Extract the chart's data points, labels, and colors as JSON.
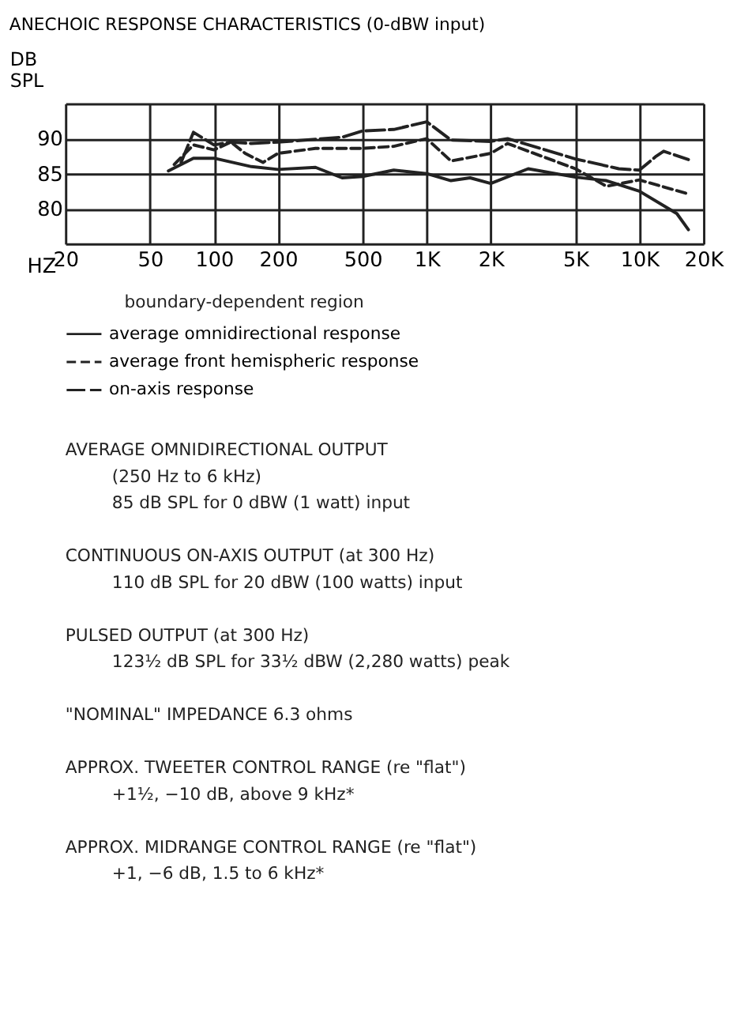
{
  "chart_data": {
    "type": "line",
    "title": "ANECHOIC RESPONSE CHARACTERISTICS (0-dBW input)",
    "xlabel": "HZ",
    "ylabel": "DB SPL",
    "log": "x",
    "grid": true,
    "legend": "bottom",
    "marker": "none",
    "xlim": [
      20,
      20000
    ],
    "xticks": [
      20,
      50,
      100,
      200,
      500,
      {
        "value": 1000,
        "label": "1K"
      },
      {
        "value": 2000,
        "label": "2K"
      },
      {
        "value": 5000,
        "label": "5K"
      },
      {
        "value": 10000,
        "label": "10K"
      },
      {
        "value": 20000,
        "label": "20K"
      }
    ],
    "ylim": [
      75,
      95
    ],
    "yticks": [
      {
        "value": 75,
        "label": null
      },
      80,
      85,
      90,
      {
        "value": 95,
        "label": null
      }
    ],
    "series": [
      {
        "name": "average omnidirectional response",
        "color": "#222222",
        "line_style": "solid",
        "x": [
          61,
          80,
          100,
          150,
          200,
          300,
          400,
          500,
          700,
          1000,
          1300,
          1600,
          2000,
          3000,
          5000,
          7000,
          10000,
          15000,
          17000
        ],
        "values": [
          85.4,
          87.2,
          87.2,
          86,
          85.6,
          85.9,
          84.4,
          84.6,
          85.5,
          85,
          84,
          84.4,
          83.6,
          85.7,
          84.5,
          84,
          82.5,
          79.3,
          77
        ]
      },
      {
        "name": "average front hemispheric response",
        "color": "#222222",
        "line_style": "dashed",
        "x": [
          65,
          80,
          100,
          120,
          140,
          170,
          200,
          300,
          500,
          700,
          1000,
          1300,
          2000,
          2400,
          5000,
          7000,
          10000,
          17000
        ],
        "values": [
          86.3,
          89.1,
          88.4,
          89.5,
          87.9,
          86.6,
          87.9,
          88.6,
          88.6,
          88.9,
          90,
          86.8,
          87.9,
          89.3,
          85.7,
          83.2,
          84.1,
          82.1
        ]
      },
      {
        "name": "on-axis response",
        "color": "#222222",
        "line_style": "dashed",
        "x": [
          70,
          80,
          100,
          120,
          150,
          200,
          300,
          400,
          500,
          700,
          1000,
          1300,
          2000,
          2400,
          5000,
          8000,
          10000,
          12000,
          13000,
          17000
        ],
        "values": [
          86.6,
          90.9,
          89.1,
          89.5,
          89.3,
          89.5,
          89.9,
          90.2,
          91.1,
          91.3,
          92.4,
          89.8,
          89.6,
          90,
          87.1,
          85.7,
          85.5,
          87.5,
          88.2,
          87
        ]
      }
    ],
    "annotations": [
      "boundary-dependent region",
      "AVERAGE OMNIDIRECTIONAL OUTPUT\n(250 Hz to 6 kHz)\n85 dB SPL for 0 dBW (1 watt) input",
      "CONTINUOUS ON-AXIS OUTPUT (at 300 Hz)\n110 dB SPL for 20 dBW (100 watts) input",
      "PULSED OUTPUT (at 300 Hz)\n123½ dB SPL for 33½ dBW (2,280 watts) peak",
      "\"NOMINAL\" IMPEDANCE          6.3 ohms",
      "APPROX. TWEETER CONTROL RANGE (re \"flat\")\n+1½, −10 dB, above 9 kHz*",
      "APPROX. MIDRANGE CONTROL RANGE (re \"flat\")\n+1, −6 dB, 1.5 to 6 kHz*"
    ]
  }
}
